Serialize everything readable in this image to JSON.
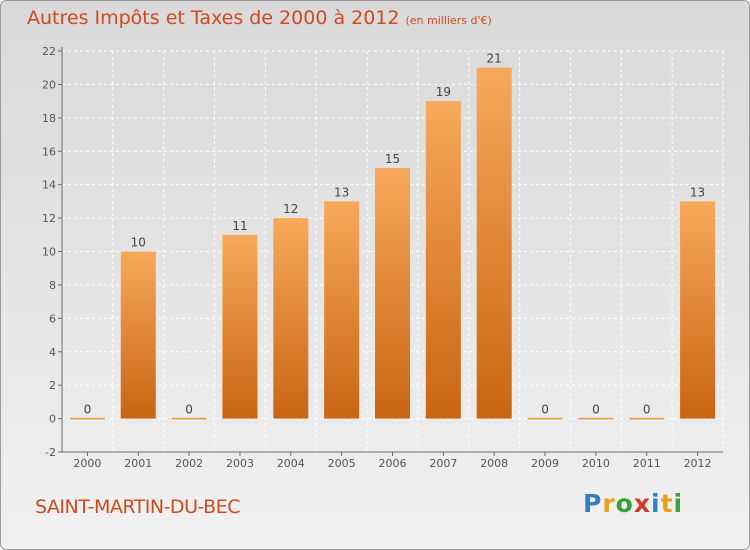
{
  "header": {
    "title": "Autres Impôts et Taxes de 2000 à 2012",
    "subtitle": "(en milliers d'€)"
  },
  "footer": {
    "town": "SAINT-MARTIN-DU-BEC",
    "logo_letters": [
      "P",
      "r",
      "o",
      "x",
      "i",
      "t",
      "i"
    ],
    "logo_colors": [
      "#2f7fc1",
      "#e8a21a",
      "#3aa039",
      "#d0392b",
      "#2f7fc1",
      "#e8a21a",
      "#3aa039"
    ]
  },
  "colors": {
    "title": "#d04a1e",
    "bar_top": "#f7a95a",
    "bar_bottom": "#c96512",
    "zero_line": "#e8963c",
    "axis": "#6b6b6b",
    "grid": "#ffffff"
  },
  "chart_data": {
    "type": "bar",
    "title": "Autres Impôts et Taxes de 2000 à 2012",
    "subtitle": "(en milliers d'€)",
    "categories": [
      "2000",
      "2001",
      "2002",
      "2003",
      "2004",
      "2005",
      "2006",
      "2007",
      "2008",
      "2009",
      "2010",
      "2011",
      "2012"
    ],
    "values": [
      0,
      10,
      0,
      11,
      12,
      13,
      15,
      19,
      21,
      0,
      0,
      0,
      13
    ],
    "ylim": [
      -2,
      22
    ],
    "yticks": [
      -2,
      0,
      2,
      4,
      6,
      8,
      10,
      12,
      14,
      16,
      18,
      20,
      22
    ],
    "grid": "horizontal dashed",
    "legend": "none"
  }
}
